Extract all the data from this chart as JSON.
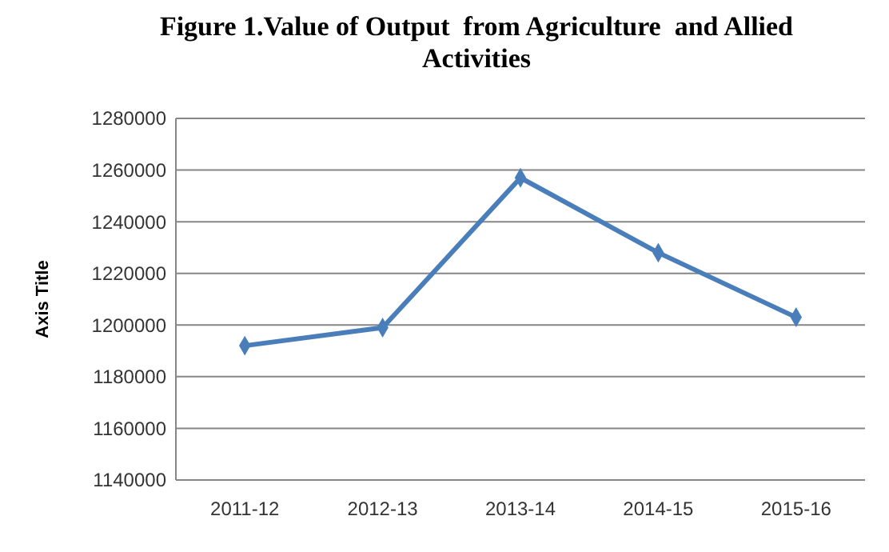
{
  "chart_data": {
    "type": "line",
    "title": "Figure 1.Value of Output  from Agriculture  and Allied Activities",
    "ylabel": "Axis Title",
    "categories": [
      "2011-12",
      "2012-13",
      "2013-14",
      "2014-15",
      "2015-16"
    ],
    "series": [
      {
        "color": "#4a7ebb",
        "values": [
          1192000,
          1199000,
          1257000,
          1228000,
          1203000
        ]
      }
    ],
    "ylim": [
      1140000,
      1280000
    ],
    "yticks": [
      1140000,
      1160000,
      1180000,
      1200000,
      1220000,
      1240000,
      1260000,
      1280000
    ],
    "grid": "y",
    "marker": "diamond",
    "line_style": "solid"
  }
}
